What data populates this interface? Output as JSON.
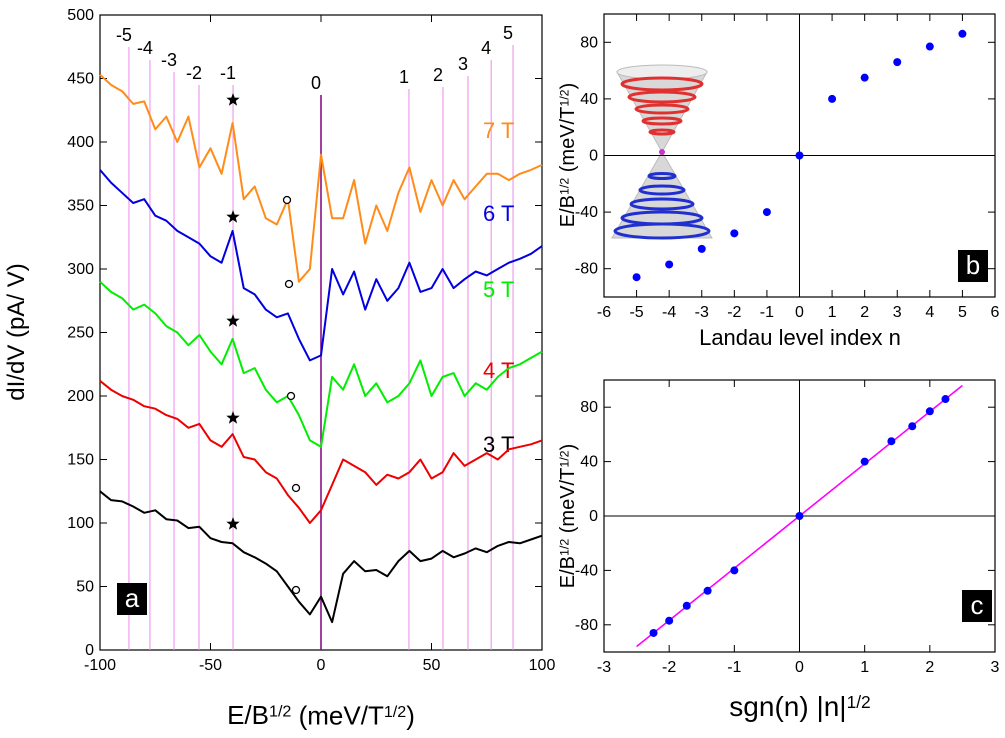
{
  "chart_data": [
    {
      "type": "line",
      "panel_label": "a",
      "xlabel": [
        "E/B",
        "1/2",
        " (meV/T",
        "1/2",
        ")"
      ],
      "ylabel": "dI/dV (pA/ V)",
      "x": [
        -100,
        -95,
        -90,
        -85,
        -80,
        -75,
        -70,
        -65,
        -60,
        -55,
        -50,
        -45,
        -40,
        -35,
        -30,
        -25,
        -20,
        -15,
        -10,
        -5,
        0,
        5,
        10,
        15,
        20,
        25,
        30,
        35,
        40,
        45,
        50,
        55,
        60,
        65,
        70,
        75,
        80,
        85,
        90,
        95,
        100
      ],
      "xlim": [
        -100,
        100
      ],
      "ylim": [
        0,
        500
      ],
      "xticks": [
        -100,
        -50,
        0,
        50,
        100
      ],
      "yticks": [
        0,
        50,
        100,
        150,
        200,
        250,
        300,
        350,
        400,
        450,
        500
      ],
      "series": [
        {
          "name": "3 T",
          "color": "#000000",
          "values": [
            125,
            118,
            117,
            113,
            108,
            110,
            103,
            102,
            96,
            97,
            88,
            85,
            84,
            77,
            73,
            68,
            62,
            50,
            38,
            28,
            42,
            22,
            60,
            70,
            62,
            63,
            58,
            70,
            78,
            70,
            72,
            78,
            73,
            76,
            80,
            77,
            82,
            85,
            84,
            87,
            90
          ]
        },
        {
          "name": "4 T",
          "color": "#ee0000",
          "values": [
            212,
            205,
            200,
            197,
            192,
            190,
            185,
            182,
            175,
            178,
            165,
            160,
            170,
            152,
            150,
            140,
            135,
            122,
            112,
            100,
            110,
            130,
            150,
            145,
            140,
            130,
            138,
            135,
            140,
            150,
            135,
            140,
            155,
            145,
            150,
            155,
            150,
            158,
            160,
            162,
            165
          ]
        },
        {
          "name": "5 T",
          "color": "#00ee00",
          "values": [
            290,
            282,
            277,
            268,
            272,
            265,
            255,
            250,
            240,
            248,
            235,
            225,
            245,
            218,
            222,
            205,
            195,
            200,
            185,
            165,
            160,
            215,
            205,
            225,
            200,
            210,
            195,
            200,
            210,
            228,
            200,
            215,
            218,
            200,
            210,
            205,
            215,
            222,
            225,
            230,
            235
          ]
        },
        {
          "name": "6 T",
          "color": "#0000e0",
          "values": [
            378,
            368,
            360,
            352,
            355,
            342,
            338,
            330,
            325,
            320,
            310,
            305,
            330,
            285,
            280,
            268,
            262,
            265,
            245,
            228,
            232,
            300,
            280,
            298,
            268,
            292,
            275,
            285,
            305,
            282,
            285,
            300,
            285,
            292,
            298,
            295,
            300,
            305,
            308,
            312,
            318
          ]
        },
        {
          "name": "7 T",
          "color": "#ff8c1a",
          "values": [
            453,
            445,
            440,
            430,
            432,
            410,
            420,
            400,
            420,
            380,
            395,
            375,
            415,
            355,
            365,
            340,
            335,
            355,
            290,
            300,
            390,
            340,
            340,
            370,
            320,
            350,
            330,
            360,
            380,
            345,
            370,
            350,
            370,
            355,
            365,
            375,
            375,
            370,
            375,
            378,
            382
          ]
        }
      ],
      "vline_color": "#ee88ee",
      "vlines": [
        {
          "value": -86.9,
          "label": "-5"
        },
        {
          "value": -77.4,
          "label": "-4"
        },
        {
          "value": -66.5,
          "label": "-3"
        },
        {
          "value": -55.2,
          "label": "-2"
        },
        {
          "value": -39.8,
          "label": "-1"
        },
        {
          "value": 0,
          "label": "0"
        },
        {
          "value": 39.8,
          "label": "1"
        },
        {
          "value": 55.2,
          "label": "2"
        },
        {
          "value": 66.5,
          "label": "3"
        },
        {
          "value": 77.0,
          "label": "4"
        },
        {
          "value": 86.9,
          "label": "5"
        }
      ]
    },
    {
      "type": "scatter",
      "panel_label": "b",
      "xlabel": "Landau level index n",
      "ylabel": [
        "E/B",
        "1/2",
        " (meV/T",
        "1/2",
        ")"
      ],
      "x": [
        -5,
        -4,
        -3,
        -2,
        -1,
        0,
        1,
        2,
        3,
        4,
        5
      ],
      "series": [
        {
          "color": "#0000ff",
          "values": [
            -86,
            -77,
            -66,
            -55,
            -40,
            0,
            40,
            55,
            66,
            77,
            86
          ]
        }
      ],
      "xlim": [
        -6,
        6
      ],
      "ylim": [
        -100,
        100
      ],
      "xticks": [
        -6,
        -5,
        -4,
        -3,
        -2,
        -1,
        0,
        1,
        2,
        3,
        4,
        5,
        6
      ],
      "yticks": [
        -80,
        -40,
        0,
        40,
        80
      ]
    },
    {
      "type": "scatter",
      "panel_label": "c",
      "xlabel": [
        "sgn(n) |n|",
        "1/2"
      ],
      "ylabel": [
        "E/B",
        "1/2",
        " (meV/T",
        "1/2",
        ")"
      ],
      "x": [
        -2.24,
        -2,
        -1.73,
        -1.41,
        -1,
        0,
        1,
        1.41,
        1.73,
        2,
        2.24
      ],
      "series": [
        {
          "color": "#0000ff",
          "values": [
            -86,
            -77,
            -66,
            -55,
            -40,
            0,
            40,
            55,
            66,
            77,
            86
          ]
        }
      ],
      "fit": {
        "color": "#ff00ff",
        "x": [
          -2.5,
          2.5
        ],
        "values": [
          -96,
          96
        ]
      },
      "xlim": [
        -3,
        3
      ],
      "ylim": [
        -100,
        100
      ],
      "xticks": [
        -3,
        -2,
        -1,
        0,
        1,
        2,
        3
      ],
      "yticks": [
        -80,
        -40,
        0,
        40,
        80
      ]
    }
  ]
}
